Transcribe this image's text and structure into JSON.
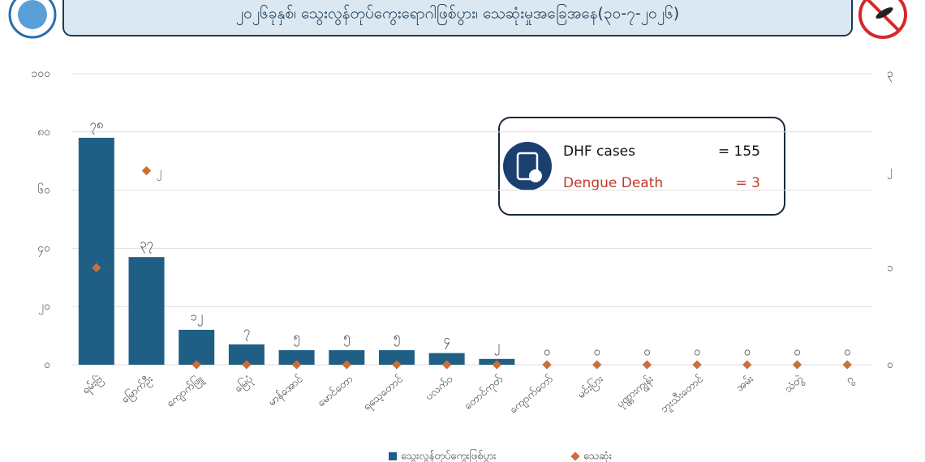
{
  "chart_data": {
    "type": "bar",
    "title": "၂၀၂၆ခုနှစ်၊ သွေးလွန်တုပ်ကွေးရောဂါဖြစ်ပွား၊ သေဆုံးမှုအခြေအနေ(၃၀-၇-၂၀၂၆)",
    "categories": [
      "ရမ်းဗြဲ",
      "မြောက်ဦး",
      "ကျောက်ဖြူ",
      "မြေပုံ",
      "မာန်အောင်",
      "မောင်တော",
      "ရသေ့တောင်",
      "ပလက်ဝ",
      "တောင်ကုတ်",
      "ကျောက်တော်",
      "မင်းပြား",
      "ပုဏ္ဏားကျွန်း",
      "ဘူးသီးတောင်",
      "အမ်း",
      "သံတွဲ",
      "ဂွ"
    ],
    "series": [
      {
        "name": "သွေးလွန်တုပ်ကွေးဖြစ်ပွား",
        "type": "bar",
        "color": "#1f5f85",
        "values": [
          78,
          37,
          12,
          7,
          5,
          5,
          5,
          4,
          2,
          0,
          0,
          0,
          0,
          0,
          0,
          0
        ],
        "value_labels": [
          "၇၈",
          "၃၇",
          "၁၂",
          "၇",
          "၅",
          "၅",
          "၅",
          "၄",
          "၂",
          "၀",
          "၀",
          "၀",
          "၀",
          "၀",
          "၀",
          "၀"
        ]
      },
      {
        "name": "သေဆုံး",
        "type": "scatter",
        "axis": "y2",
        "color": "#c8703a",
        "values": [
          1,
          2,
          0,
          0,
          0,
          0,
          0,
          0,
          0,
          0,
          0,
          0,
          0,
          0,
          0,
          0
        ],
        "value_labels": [
          "၁",
          "၂",
          null,
          null,
          null,
          null,
          null,
          null,
          null,
          null,
          null,
          null,
          null,
          null,
          null,
          null
        ]
      }
    ],
    "ylim": [
      0,
      100
    ],
    "yticks": [
      {
        "value": 0,
        "label": "၀"
      },
      {
        "value": 20,
        "label": "၂၀"
      },
      {
        "value": 40,
        "label": "၄၀"
      },
      {
        "value": 60,
        "label": "၆၀"
      },
      {
        "value": 80,
        "label": "၈၀"
      },
      {
        "value": 100,
        "label": "၁၀၀"
      }
    ],
    "y2lim": [
      0,
      3
    ],
    "y2ticks": [
      {
        "value": 0,
        "label": "၀"
      },
      {
        "value": 1,
        "label": "၁"
      },
      {
        "value": 2,
        "label": "၂"
      },
      {
        "value": 3,
        "label": "၃"
      }
    ],
    "grid": true,
    "legend": "bottom",
    "info_box": {
      "rows": [
        {
          "label": "DHF cases",
          "value": "= 155",
          "color": "#111111"
        },
        {
          "label": "Dengue Death",
          "value": "= 3",
          "color": "#c0392b"
        }
      ]
    }
  }
}
